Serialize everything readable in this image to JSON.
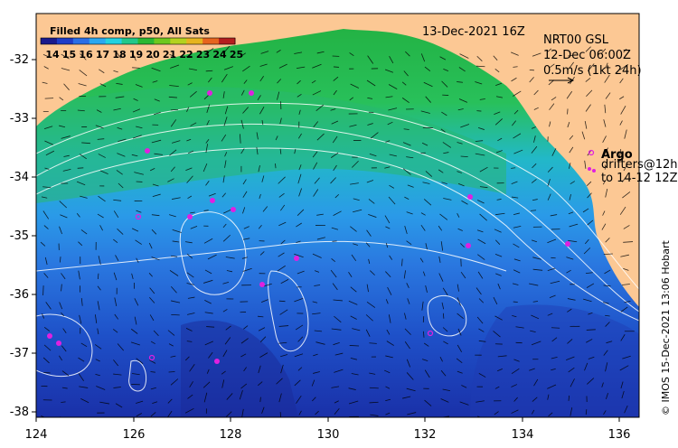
{
  "colorbar": {
    "title": "Filled 4h comp, p50, All Sats",
    "ticks": [
      "14",
      "15",
      "16",
      "17",
      "18",
      "19",
      "20",
      "21",
      "22",
      "23",
      "24",
      "25"
    ],
    "colors": [
      "#1a1a8c",
      "#1e3cc8",
      "#2a6ee6",
      "#2aa8f0",
      "#22d2e0",
      "#22c88a",
      "#2ab832",
      "#6ec81e",
      "#b4d21e",
      "#e6b41e",
      "#e6641e",
      "#b41e1e"
    ]
  },
  "date_label": "13-Dec-2021 16Z",
  "info": {
    "line1": "NRT00 GSL",
    "line2": "12-Dec 06:00Z",
    "line3": "0.5m/s (1kt 24h)"
  },
  "legend": {
    "argo": "Argo",
    "drifters_line1": "drifters@12h",
    "drifters_line2": "to 14-12 12Z"
  },
  "credit": "© IMOS 15-Dec-2021 13:06 Hobart",
  "axes": {
    "x_ticks": [
      "124",
      "126",
      "128",
      "130",
      "132",
      "134",
      "136"
    ],
    "y_ticks": [
      "-32",
      "-33",
      "-34",
      "-35",
      "-36",
      "-37",
      "-38"
    ]
  },
  "colors": {
    "land": "#fcc894",
    "contour": "#ffffff",
    "argo": "#e020e0"
  }
}
